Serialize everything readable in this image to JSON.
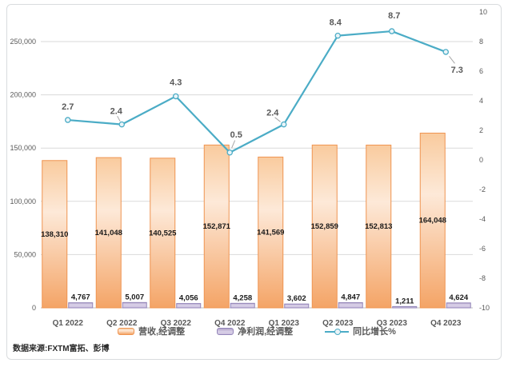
{
  "chart_data": {
    "type": "combo-bar-line",
    "categories": [
      "Q1 2022",
      "Q2 2022",
      "Q3 2022",
      "Q4 2022",
      "Q1 2023",
      "Q2 2023",
      "Q3 2023",
      "Q4 2023"
    ],
    "series": [
      {
        "name": "营收,经调整",
        "type": "bar",
        "axis": "left",
        "values": [
          138310,
          141048,
          140525,
          152871,
          141569,
          152859,
          152813,
          164048
        ],
        "labels": [
          "138,310",
          "141,048",
          "140,525",
          "152,871",
          "141,569",
          "152,859",
          "152,813",
          "164,048"
        ],
        "label_position": "center"
      },
      {
        "name": "净利润,经调整",
        "type": "bar",
        "axis": "left",
        "values": [
          4767,
          5007,
          4056,
          4258,
          3602,
          4847,
          1211,
          4624
        ],
        "labels": [
          "4,767",
          "5,007",
          "4,056",
          "4,258",
          "3,602",
          "4,847",
          "1,211",
          "4,624"
        ],
        "label_position": "outside-top"
      },
      {
        "name": "同比增长%",
        "type": "line",
        "axis": "right",
        "values": [
          2.7,
          2.4,
          4.3,
          0.5,
          2.4,
          8.4,
          8.7,
          7.3
        ],
        "labels": [
          "2.7",
          "2.4",
          "4.3",
          "0.5",
          "2.4",
          "8.4",
          "8.7",
          "7.3"
        ],
        "label_offsets": [
          {
            "dx": 0,
            "dy": -13,
            "leader": false
          },
          {
            "dx": -7,
            "dy": -13,
            "leader": true
          },
          {
            "dx": 0,
            "dy": -14,
            "leader": false
          },
          {
            "dx": 8,
            "dy": -19,
            "leader": true
          },
          {
            "dx": -14,
            "dy": -11,
            "leader": true
          },
          {
            "dx": -3,
            "dy": -13,
            "leader": false
          },
          {
            "dx": 3,
            "dy": -16,
            "leader": false
          },
          {
            "dx": 14,
            "dy": 18,
            "leader": true
          }
        ]
      }
    ],
    "left_axis": {
      "tick_values": [
        0,
        50000,
        100000,
        150000,
        200000,
        250000
      ],
      "tick_labels": [
        "0",
        "50,000",
        "100,000",
        "150,000",
        "200,000",
        "250,000"
      ]
    },
    "right_axis": {
      "min": -10,
      "max": 10,
      "tick_values": [
        10,
        8,
        6,
        4,
        2,
        0,
        -2,
        -4,
        -6,
        -8,
        -10
      ],
      "tick_labels": [
        "10",
        "8",
        "6",
        "4",
        "2",
        "0",
        "-2",
        "-4",
        "-6",
        "-8",
        "-10"
      ]
    },
    "grid": true,
    "legend_position": "bottom",
    "source": "数据来源:FXTM富拓、彭博",
    "colors": {
      "revenue_gradient": [
        "#f9cb9e",
        "#fde9d8",
        "#f4a466"
      ],
      "revenue_border": "#ef9450",
      "profit_gradient": [
        "#b2a3c9",
        "#d9d1e8",
        "#cdc1df"
      ],
      "profit_border": "#9385b9",
      "line": "#4bacc6",
      "marker_fill": "#eaf4f8",
      "gridline": "#dadada",
      "zero_line": "#bfbfbf",
      "axis_text": "#595959",
      "bar_label_text": "#1a1a1a",
      "leader": "#a6a6a6"
    }
  }
}
